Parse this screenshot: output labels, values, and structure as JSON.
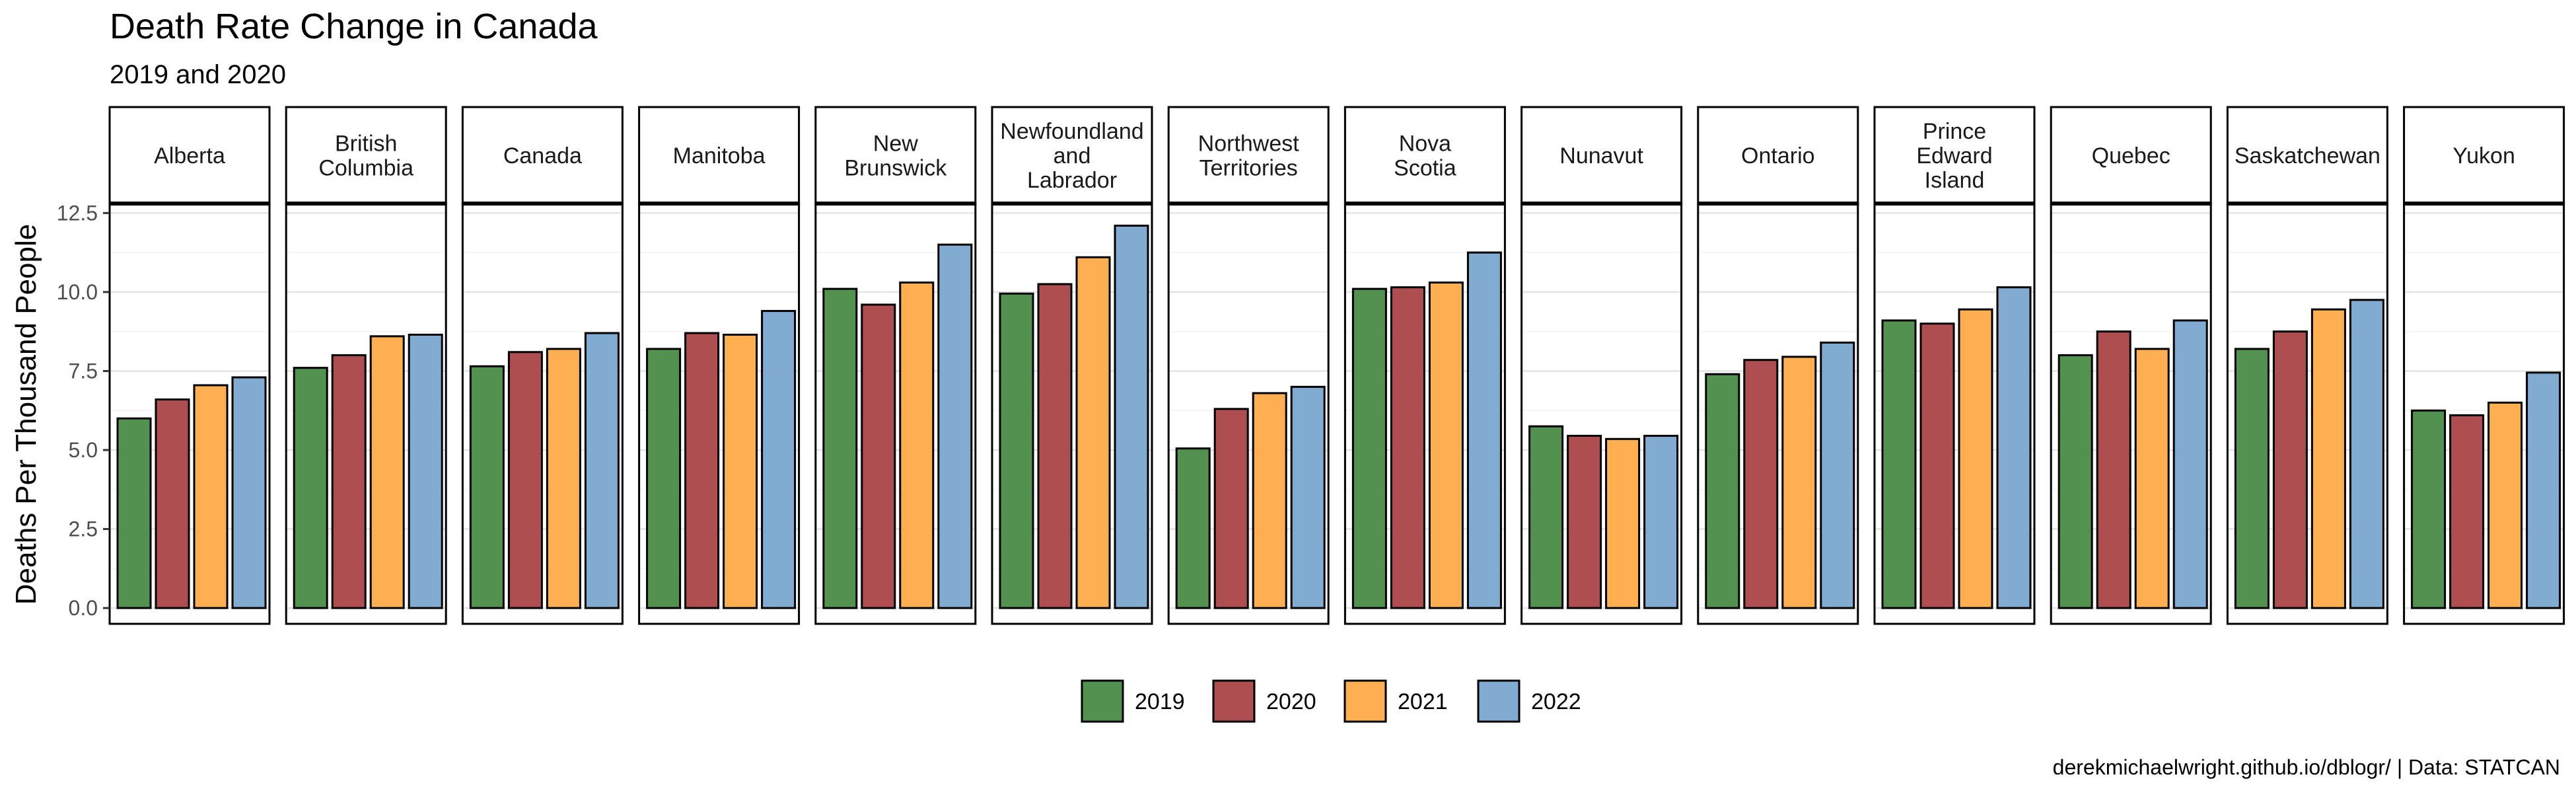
{
  "chart_data": {
    "type": "bar",
    "title": "Death Rate Change in Canada",
    "subtitle": "2019 and 2020",
    "ylabel": "Deaths Per Thousand People",
    "caption": "derekmichaelwright.github.io/dblogr/ | Data: STATCAN",
    "ylim": [
      -0.5,
      12.8
    ],
    "yticks": [
      "0.0",
      "2.5",
      "5.0",
      "7.5",
      "10.0",
      "12.5"
    ],
    "series_names": [
      "2019",
      "2020",
      "2021",
      "2022"
    ],
    "colors": [
      "#4a8c45",
      "#aa4448",
      "#fdab48",
      "#7aa6ce"
    ],
    "legend_position": "bottom",
    "grid": true,
    "facets": [
      {
        "name": "Alberta",
        "values": [
          6.0,
          6.6,
          7.05,
          7.3
        ]
      },
      {
        "name": "British Columbia",
        "values": [
          7.6,
          8.0,
          8.6,
          8.65
        ]
      },
      {
        "name": "Canada",
        "values": [
          7.65,
          8.1,
          8.2,
          8.7
        ]
      },
      {
        "name": "Manitoba",
        "values": [
          8.2,
          8.7,
          8.65,
          9.4
        ]
      },
      {
        "name": "New Brunswick",
        "values": [
          10.1,
          9.6,
          10.3,
          11.5
        ]
      },
      {
        "name": "Newfoundland and Labrador",
        "values": [
          9.95,
          10.25,
          11.1,
          12.1
        ]
      },
      {
        "name": "Northwest Territories",
        "values": [
          5.05,
          6.3,
          6.8,
          7.0
        ]
      },
      {
        "name": "Nova Scotia",
        "values": [
          10.1,
          10.15,
          10.3,
          11.25
        ]
      },
      {
        "name": "Nunavut",
        "values": [
          5.75,
          5.45,
          5.35,
          5.45
        ]
      },
      {
        "name": "Ontario",
        "values": [
          7.4,
          7.85,
          7.95,
          8.4
        ]
      },
      {
        "name": "Prince Edward Island",
        "values": [
          9.1,
          9.0,
          9.45,
          10.15
        ]
      },
      {
        "name": "Quebec",
        "values": [
          8.0,
          8.75,
          8.2,
          9.1
        ]
      },
      {
        "name": "Saskatchewan",
        "values": [
          8.2,
          8.75,
          9.45,
          9.75
        ]
      },
      {
        "name": "Yukon",
        "values": [
          6.25,
          6.1,
          6.5,
          7.45
        ]
      }
    ],
    "strip_lines": [
      [
        "Alberta"
      ],
      [
        "British",
        "Columbia"
      ],
      [
        "Canada"
      ],
      [
        "Manitoba"
      ],
      [
        "New",
        "Brunswick"
      ],
      [
        "Newfoundland",
        "and",
        "Labrador"
      ],
      [
        "Northwest",
        "Territories"
      ],
      [
        "Nova",
        "Scotia"
      ],
      [
        "Nunavut"
      ],
      [
        "Ontario"
      ],
      [
        "Prince",
        "Edward",
        "Island"
      ],
      [
        "Quebec"
      ],
      [
        "Saskatchewan"
      ],
      [
        "Yukon"
      ]
    ]
  }
}
